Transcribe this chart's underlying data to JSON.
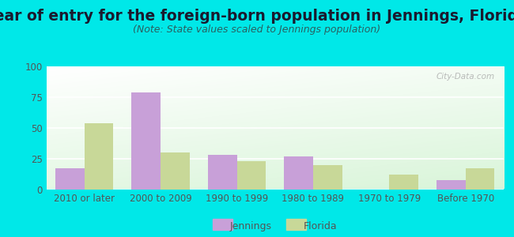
{
  "title": "Year of entry for the foreign-born population in Jennings, Florida",
  "subtitle": "(Note: State values scaled to Jennings population)",
  "categories": [
    "2010 or later",
    "2000 to 2009",
    "1990 to 1999",
    "1980 to 1989",
    "1970 to 1979",
    "Before 1970"
  ],
  "jennings_values": [
    17,
    79,
    28,
    27,
    0,
    8
  ],
  "florida_values": [
    54,
    30,
    23,
    20,
    12,
    17
  ],
  "jennings_color": "#c8a0d8",
  "florida_color": "#c8d898",
  "background_color": "#00e8e8",
  "ylim": [
    0,
    100
  ],
  "yticks": [
    0,
    25,
    50,
    75,
    100
  ],
  "bar_width": 0.38,
  "title_fontsize": 13.5,
  "subtitle_fontsize": 9,
  "tick_fontsize": 8.5,
  "legend_fontsize": 9,
  "watermark_text": "City-Data.com",
  "grid_color": "#dddddd",
  "tick_color": "#555555"
}
